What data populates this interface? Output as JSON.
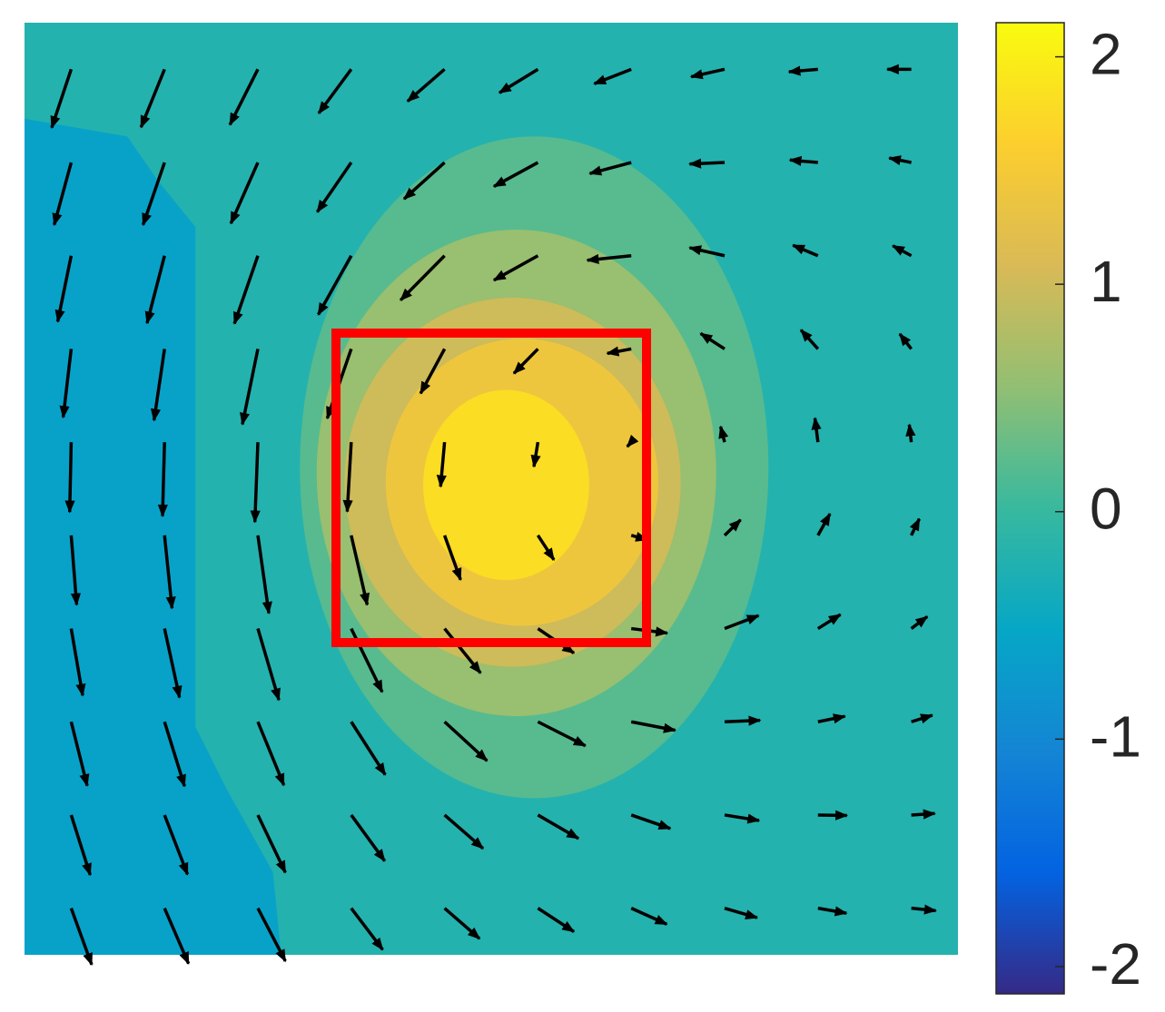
{
  "chart_data": {
    "type": "contour",
    "xlim": [
      0,
      1
    ],
    "ylim": [
      0,
      1
    ],
    "clim": [
      -2.12,
      2.15
    ],
    "cticks": [
      -2,
      -1,
      0,
      1,
      2
    ],
    "colormap": [
      "#352a87",
      "#0363e1",
      "#1485d4",
      "#06a7c6",
      "#38b99e",
      "#92bf73",
      "#d9ba56",
      "#fcce2e",
      "#f9fb0e"
    ],
    "background_level": -0.2,
    "regions": [
      {
        "level": -0.6,
        "x": [
          0,
          0.11,
          0.144,
          0.183,
          0.183,
          0.217,
          0.266,
          0.275,
          0
        ],
        "y": [
          0.897,
          0.878,
          0.829,
          0.781,
          0.245,
          0.177,
          0.089,
          0,
          0
        ]
      }
    ],
    "contours": [
      {
        "level": 0.2,
        "cx": 0.546,
        "cy": 0.523,
        "rx": 0.251,
        "ry": 0.355
      },
      {
        "level": 0.6,
        "cx": 0.527,
        "cy": 0.517,
        "rx": 0.214,
        "ry": 0.261
      },
      {
        "level": 1.0,
        "cx": 0.523,
        "cy": 0.507,
        "rx": 0.18,
        "ry": 0.198
      },
      {
        "level": 1.4,
        "cx": 0.533,
        "cy": 0.507,
        "rx": 0.146,
        "ry": 0.154
      },
      {
        "level": 1.8,
        "cx": 0.516,
        "cy": 0.504,
        "rx": 0.089,
        "ry": 0.102
      }
    ],
    "quiver": {
      "color": "#000000",
      "x": [
        0.05,
        0.15,
        0.25,
        0.35,
        0.45,
        0.55,
        0.65,
        0.75,
        0.85,
        0.95
      ],
      "y": [
        0.95,
        0.85,
        0.75,
        0.65,
        0.55,
        0.45,
        0.35,
        0.25,
        0.15,
        0.05
      ],
      "u": [
        [
          -0.39,
          -0.47,
          -0.56,
          -0.65,
          -0.74,
          -0.77,
          -0.74,
          -0.67,
          -0.58,
          -0.48
        ],
        [
          -0.34,
          -0.43,
          -0.54,
          -0.68,
          -0.81,
          -0.88,
          -0.83,
          -0.7,
          -0.56,
          -0.44
        ],
        [
          -0.27,
          -0.35,
          -0.47,
          -0.66,
          -0.88,
          -0.88,
          -0.88,
          -0.7,
          -0.5,
          -0.37
        ],
        [
          -0.16,
          -0.21,
          -0.31,
          -0.48,
          -0.48,
          -0.48,
          -0.48,
          -0.48,
          -0.34,
          -0.23
        ],
        [
          -0.03,
          -0.04,
          -0.06,
          -0.08,
          -0.08,
          -0.08,
          -0.08,
          -0.08,
          -0.06,
          -0.04
        ],
        [
          0.11,
          0.15,
          0.22,
          0.32,
          0.32,
          0.32,
          0.32,
          0.32,
          0.24,
          0.16
        ],
        [
          0.23,
          0.3,
          0.42,
          0.62,
          0.72,
          0.72,
          0.72,
          0.68,
          0.45,
          0.32
        ],
        [
          0.32,
          0.4,
          0.52,
          0.68,
          0.85,
          0.95,
          0.88,
          0.71,
          0.54,
          0.42
        ],
        [
          0.38,
          0.46,
          0.55,
          0.67,
          0.77,
          0.81,
          0.78,
          0.69,
          0.58,
          0.47
        ],
        [
          0.41,
          0.48,
          0.55,
          0.63,
          0.7,
          0.72,
          0.71,
          0.65,
          0.57,
          0.49
        ]
      ],
      "v": [
        [
          -1.17,
          -1.16,
          -1.11,
          -0.88,
          -0.64,
          -0.47,
          -0.29,
          -0.15,
          -0.05,
          0
        ],
        [
          -1.25,
          -1.25,
          -1.22,
          -0.99,
          -0.73,
          -0.48,
          -0.22,
          -0.03,
          0.05,
          0.09
        ],
        [
          -1.32,
          -1.35,
          -1.36,
          -1.18,
          -0.89,
          -0.49,
          -0.09,
          0.16,
          0.21,
          0.2
        ],
        [
          -1.37,
          -1.43,
          -1.51,
          -1.39,
          -0.89,
          -0.49,
          -0.09,
          0.31,
          0.38,
          0.3
        ],
        [
          -1.4,
          -1.48,
          -1.6,
          -1.39,
          -0.89,
          -0.49,
          -0.09,
          0.31,
          0.48,
          0.35
        ],
        [
          -1.39,
          -1.46,
          -1.56,
          -1.39,
          -0.89,
          -0.49,
          -0.09,
          0.31,
          0.43,
          0.33
        ],
        [
          -1.34,
          -1.38,
          -1.43,
          -1.27,
          -0.89,
          -0.49,
          -0.09,
          0.26,
          0.28,
          0.24
        ],
        [
          -1.28,
          -1.29,
          -1.27,
          -1.06,
          -0.78,
          -0.48,
          -0.17,
          0.03,
          0.11,
          0.13
        ],
        [
          -1.2,
          -1.19,
          -1.15,
          -0.92,
          -0.67,
          -0.47,
          -0.27,
          -0.11,
          -0.01,
          0.03
        ],
        [
          -1.13,
          -1.11,
          -1.06,
          -0.83,
          -0.61,
          -0.47,
          -0.32,
          -0.19,
          -0.1,
          -0.05
        ]
      ]
    }
  }
}
